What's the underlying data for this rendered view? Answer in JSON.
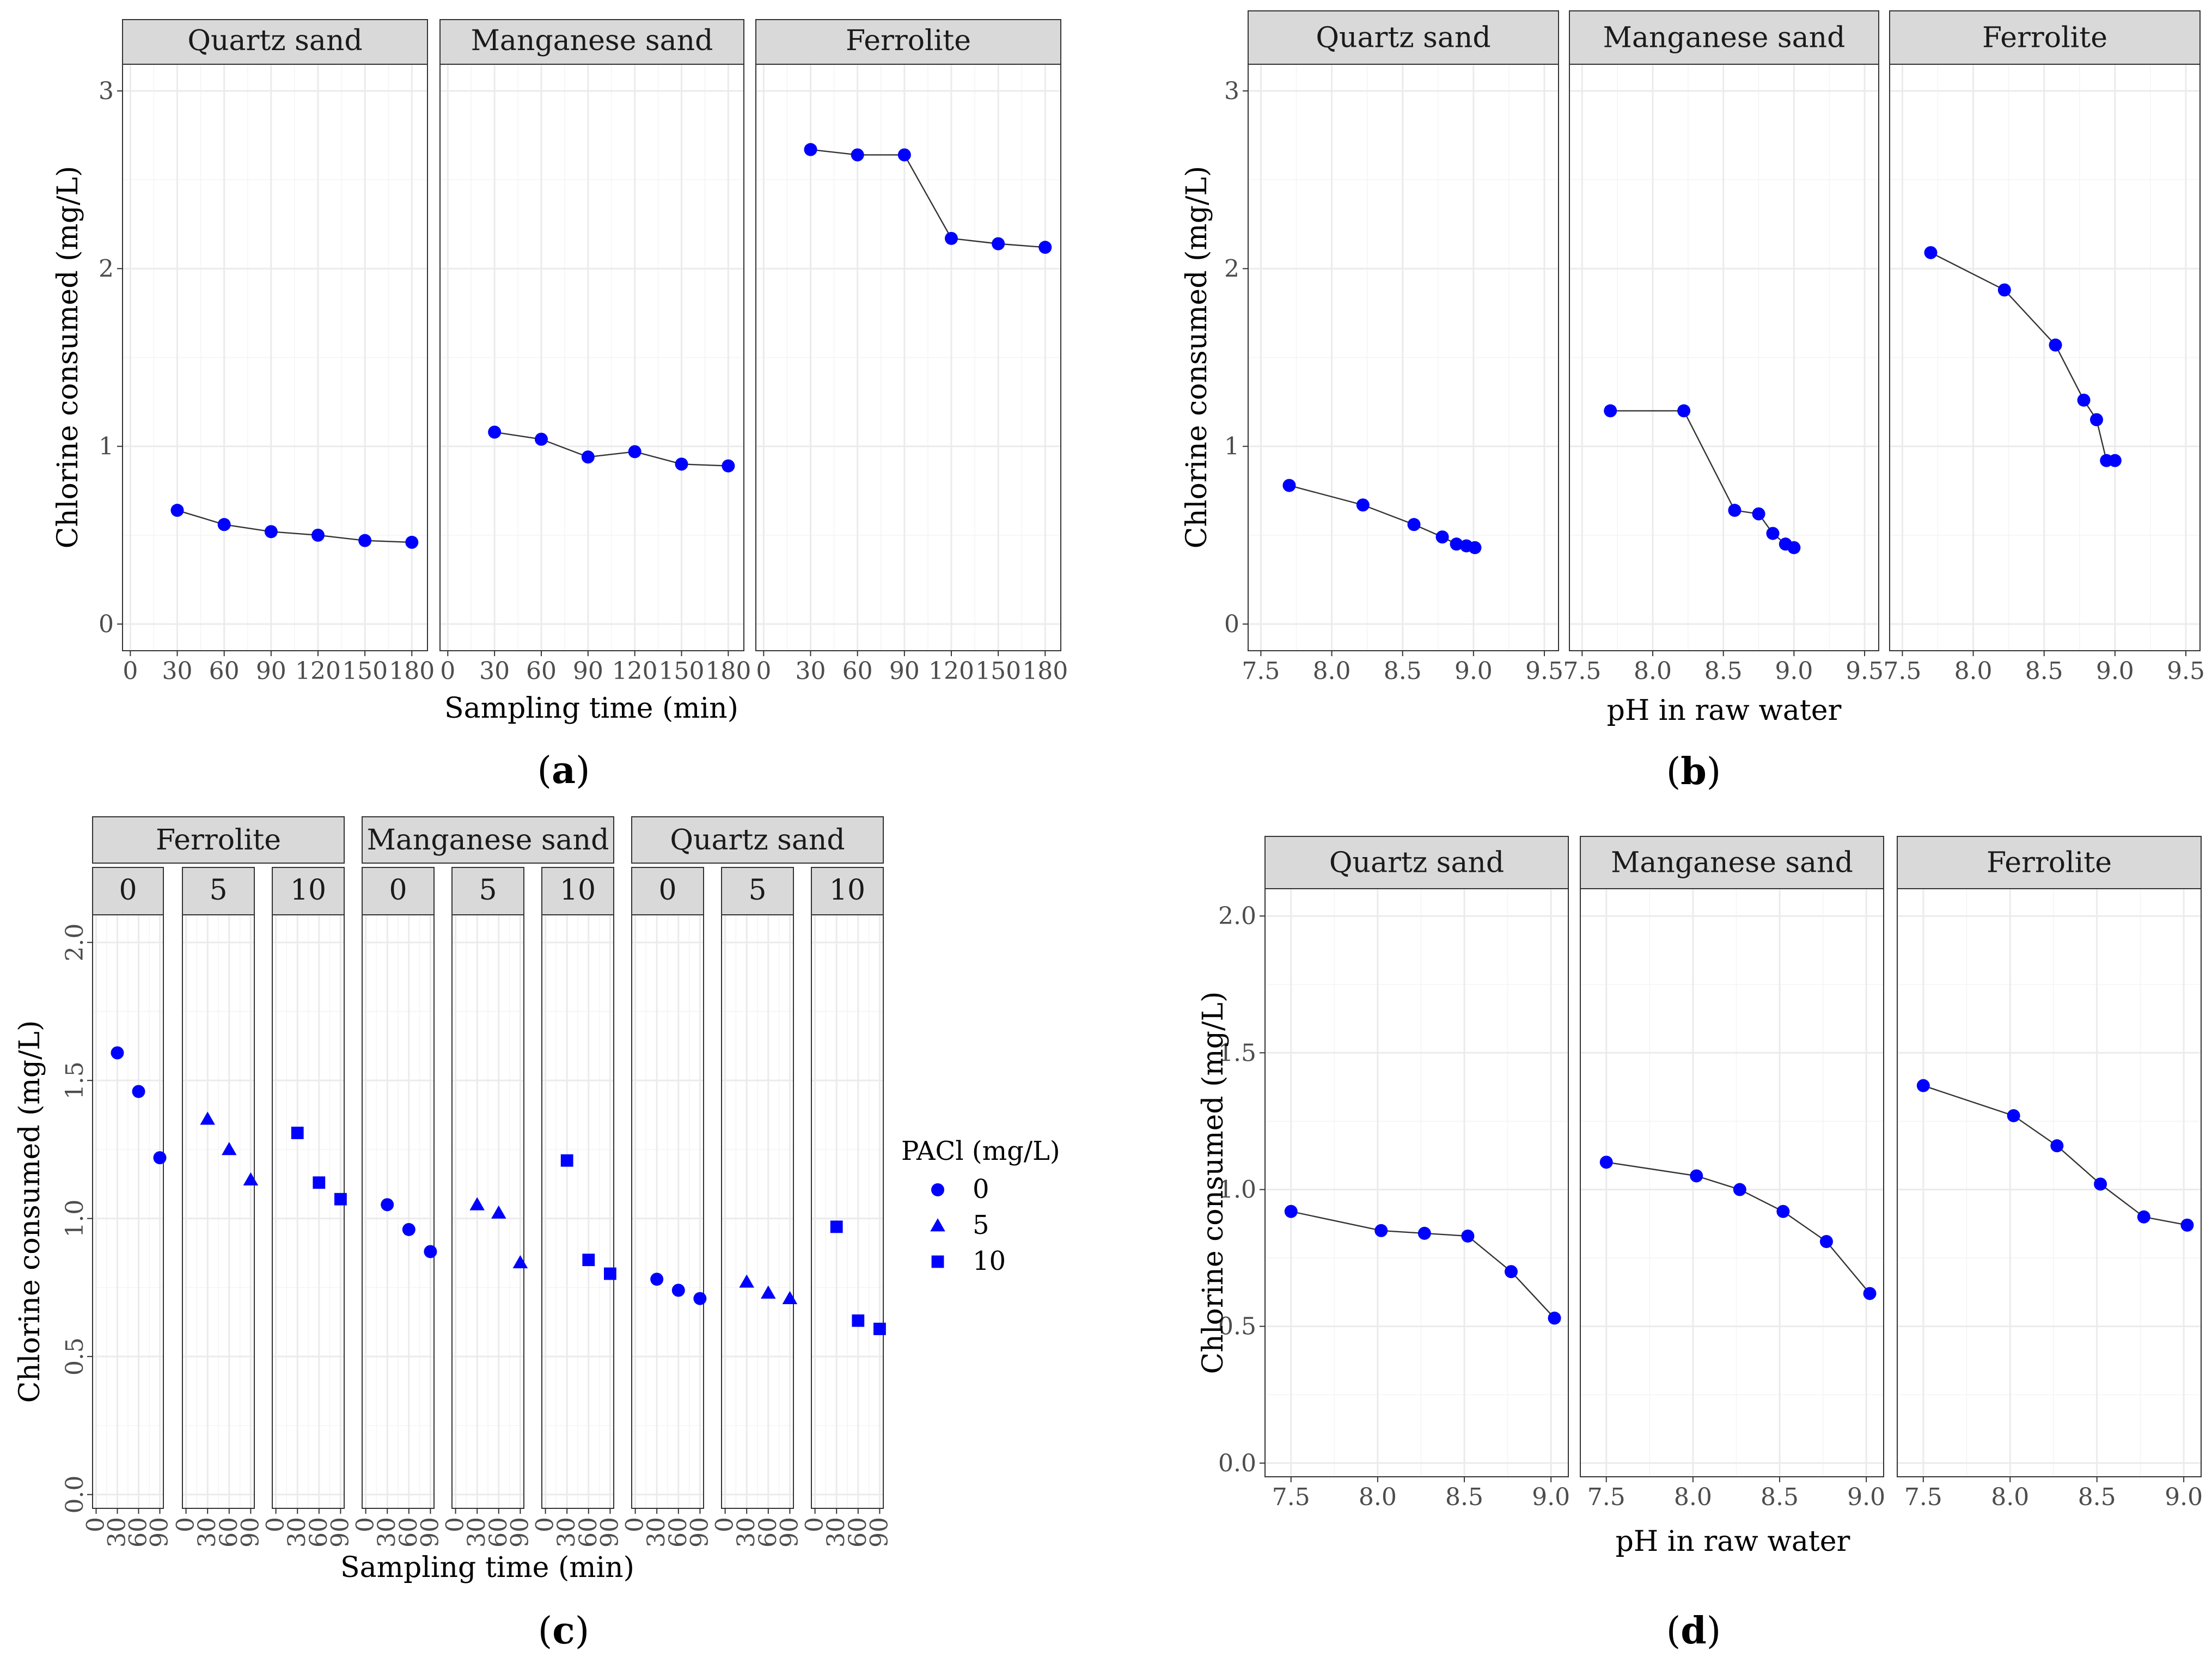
{
  "figure": {
    "marker_color": "#0000ff",
    "line_color": "#333333",
    "strip_fill": "#d9d9d9"
  },
  "chart_data": [
    {
      "id": "a",
      "label": "a",
      "type": "line",
      "xlabel": "Sampling time (min)",
      "ylabel": "Chlorine consumed (mg/L)",
      "xlim": [
        -5,
        190
      ],
      "ylim": [
        -0.15,
        3.15
      ],
      "xticks": [
        0,
        30,
        60,
        90,
        120,
        150,
        180
      ],
      "xtick_labels": [
        "0",
        "30",
        "60",
        "90",
        "120",
        "150",
        "180"
      ],
      "yticks": [
        0,
        1,
        2,
        3
      ],
      "ytick_labels": [
        "0",
        "1",
        "2",
        "3"
      ],
      "facets": [
        {
          "name": "Quartz sand",
          "x": [
            30,
            60,
            90,
            120,
            150,
            180
          ],
          "y": [
            0.64,
            0.56,
            0.52,
            0.5,
            0.47,
            0.46
          ]
        },
        {
          "name": "Manganese sand",
          "x": [
            30,
            60,
            90,
            120,
            150,
            180
          ],
          "y": [
            1.08,
            1.04,
            0.94,
            0.97,
            0.9,
            0.89
          ]
        },
        {
          "name": "Ferrolite",
          "x": [
            30,
            60,
            90,
            120,
            150,
            180
          ],
          "y": [
            2.67,
            2.64,
            2.64,
            2.17,
            2.14,
            2.12
          ]
        }
      ]
    },
    {
      "id": "b",
      "label": "b",
      "type": "line",
      "xlabel": "pH in raw water",
      "ylabel": "Chlorine consumed (mg/L)",
      "xlim": [
        7.41,
        9.6
      ],
      "ylim": [
        -0.15,
        3.15
      ],
      "xticks": [
        7.5,
        8.0,
        8.5,
        9.0,
        9.5
      ],
      "xtick_labels": [
        "7.5",
        "8.0",
        "8.5",
        "9.0",
        "9.5"
      ],
      "yticks": [
        0,
        1,
        2,
        3
      ],
      "ytick_labels": [
        "0",
        "1",
        "2",
        "3"
      ],
      "facets": [
        {
          "name": "Quartz sand",
          "x": [
            7.7,
            8.22,
            8.58,
            8.78,
            8.88,
            8.95,
            9.01
          ],
          "y": [
            0.78,
            0.67,
            0.56,
            0.49,
            0.45,
            0.44,
            0.43
          ]
        },
        {
          "name": "Manganese sand",
          "x": [
            7.7,
            8.22,
            8.58,
            8.75,
            8.85,
            8.94,
            9.0
          ],
          "y": [
            1.2,
            1.2,
            0.64,
            0.62,
            0.51,
            0.45,
            0.43
          ]
        },
        {
          "name": "Ferrolite",
          "x": [
            7.7,
            8.22,
            8.58,
            8.78,
            8.87,
            8.94,
            9.0
          ],
          "y": [
            2.09,
            1.88,
            1.57,
            1.26,
            1.15,
            0.92,
            0.92
          ]
        }
      ]
    },
    {
      "id": "c",
      "label": "c",
      "type": "scatter",
      "xlabel": "Sampling time (min)",
      "ylabel": "Chlorine consumed (mg/L)",
      "xlim": [
        -5,
        95
      ],
      "ylim": [
        -0.05,
        2.1
      ],
      "xticks": [
        0,
        30,
        60,
        90
      ],
      "xtick_labels": [
        "0",
        "30",
        "60",
        "90"
      ],
      "yticks": [
        0.0,
        0.5,
        1.0,
        1.5,
        2.0
      ],
      "ytick_labels": [
        "0.0",
        "0.5",
        "1.0",
        "1.5",
        "2.0"
      ],
      "legend": {
        "title": "PACl (mg/L)",
        "position": "right",
        "entries": [
          {
            "label": "0",
            "shape": "circle"
          },
          {
            "label": "5",
            "shape": "triangle"
          },
          {
            "label": "10",
            "shape": "square"
          }
        ]
      },
      "groups": [
        {
          "name": "Ferrolite",
          "subfacets": [
            {
              "name": "0",
              "shape": "circle",
              "x": [
                30,
                60,
                90
              ],
              "y": [
                1.6,
                1.46,
                1.22
              ]
            },
            {
              "name": "5",
              "shape": "triangle",
              "x": [
                30,
                60,
                90
              ],
              "y": [
                1.36,
                1.25,
                1.14
              ]
            },
            {
              "name": "10",
              "shape": "square",
              "x": [
                30,
                60,
                90
              ],
              "y": [
                1.31,
                1.13,
                1.07
              ]
            }
          ]
        },
        {
          "name": "Manganese sand",
          "subfacets": [
            {
              "name": "0",
              "shape": "circle",
              "x": [
                30,
                60,
                90
              ],
              "y": [
                1.05,
                0.96,
                0.88
              ]
            },
            {
              "name": "5",
              "shape": "triangle",
              "x": [
                30,
                60,
                90
              ],
              "y": [
                1.05,
                1.02,
                0.84
              ]
            },
            {
              "name": "10",
              "shape": "square",
              "x": [
                30,
                60,
                90
              ],
              "y": [
                1.21,
                0.85,
                0.8
              ]
            }
          ]
        },
        {
          "name": "Quartz sand",
          "subfacets": [
            {
              "name": "0",
              "shape": "circle",
              "x": [
                30,
                60,
                90
              ],
              "y": [
                0.78,
                0.74,
                0.71
              ]
            },
            {
              "name": "5",
              "shape": "triangle",
              "x": [
                30,
                60,
                90
              ],
              "y": [
                0.77,
                0.73,
                0.71
              ]
            },
            {
              "name": "10",
              "shape": "square",
              "x": [
                30,
                60,
                90
              ],
              "y": [
                0.97,
                0.63,
                0.6
              ]
            }
          ]
        }
      ]
    },
    {
      "id": "d",
      "label": "d",
      "type": "line",
      "xlabel": "pH in raw water",
      "ylabel": "Chlorine consumed (mg/L)",
      "xlim": [
        7.35,
        9.1
      ],
      "ylim": [
        -0.05,
        2.1
      ],
      "xticks": [
        7.5,
        8.0,
        8.5,
        9.0
      ],
      "xtick_labels": [
        "7.5",
        "8.0",
        "8.5",
        "9.0"
      ],
      "yticks": [
        0.0,
        0.5,
        1.0,
        1.5,
        2.0
      ],
      "ytick_labels": [
        "0.0",
        "0.5",
        "1.0",
        "1.5",
        "2.0"
      ],
      "facets": [
        {
          "name": "Quartz sand",
          "x": [
            7.5,
            8.02,
            8.27,
            8.52,
            8.77,
            9.02
          ],
          "y": [
            0.92,
            0.85,
            0.84,
            0.83,
            0.7,
            0.53
          ]
        },
        {
          "name": "Manganese sand",
          "x": [
            7.5,
            8.02,
            8.27,
            8.52,
            8.77,
            9.02
          ],
          "y": [
            1.1,
            1.05,
            1.0,
            0.92,
            0.81,
            0.62
          ]
        },
        {
          "name": "Ferrolite",
          "x": [
            7.5,
            8.02,
            8.27,
            8.52,
            8.77,
            9.02
          ],
          "y": [
            1.38,
            1.27,
            1.16,
            1.02,
            0.9,
            0.87
          ]
        }
      ]
    }
  ]
}
